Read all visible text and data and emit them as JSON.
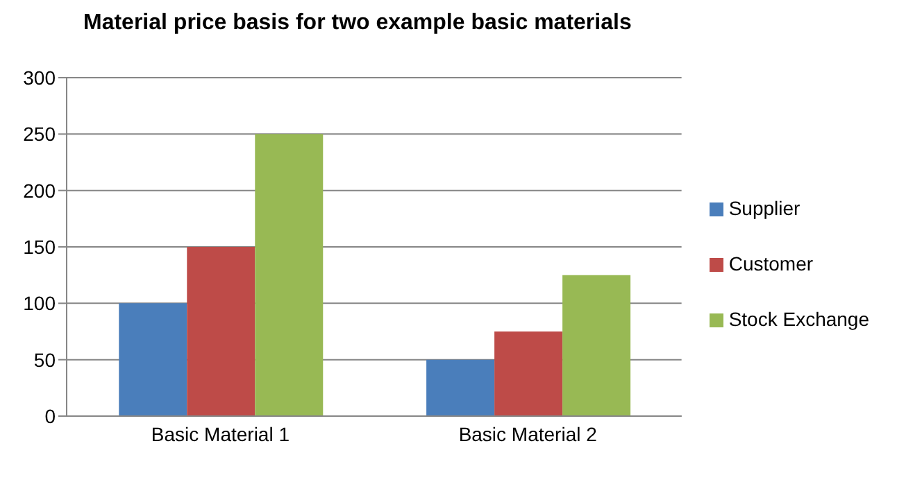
{
  "chart_data": {
    "type": "bar",
    "title": "Material price basis for two example basic materials",
    "categories": [
      "Basic Material 1",
      "Basic Material 2"
    ],
    "series": [
      {
        "name": "Supplier",
        "color": "#4a7ebb",
        "values": [
          100,
          50
        ]
      },
      {
        "name": "Customer",
        "color": "#be4b48",
        "values": [
          150,
          75
        ]
      },
      {
        "name": "Stock Exchange",
        "color": "#98b954",
        "values": [
          250,
          125
        ]
      }
    ],
    "ylim": [
      0,
      300
    ],
    "yticks": [
      0,
      50,
      100,
      150,
      200,
      250,
      300
    ],
    "grid": "y",
    "legend": "right"
  }
}
